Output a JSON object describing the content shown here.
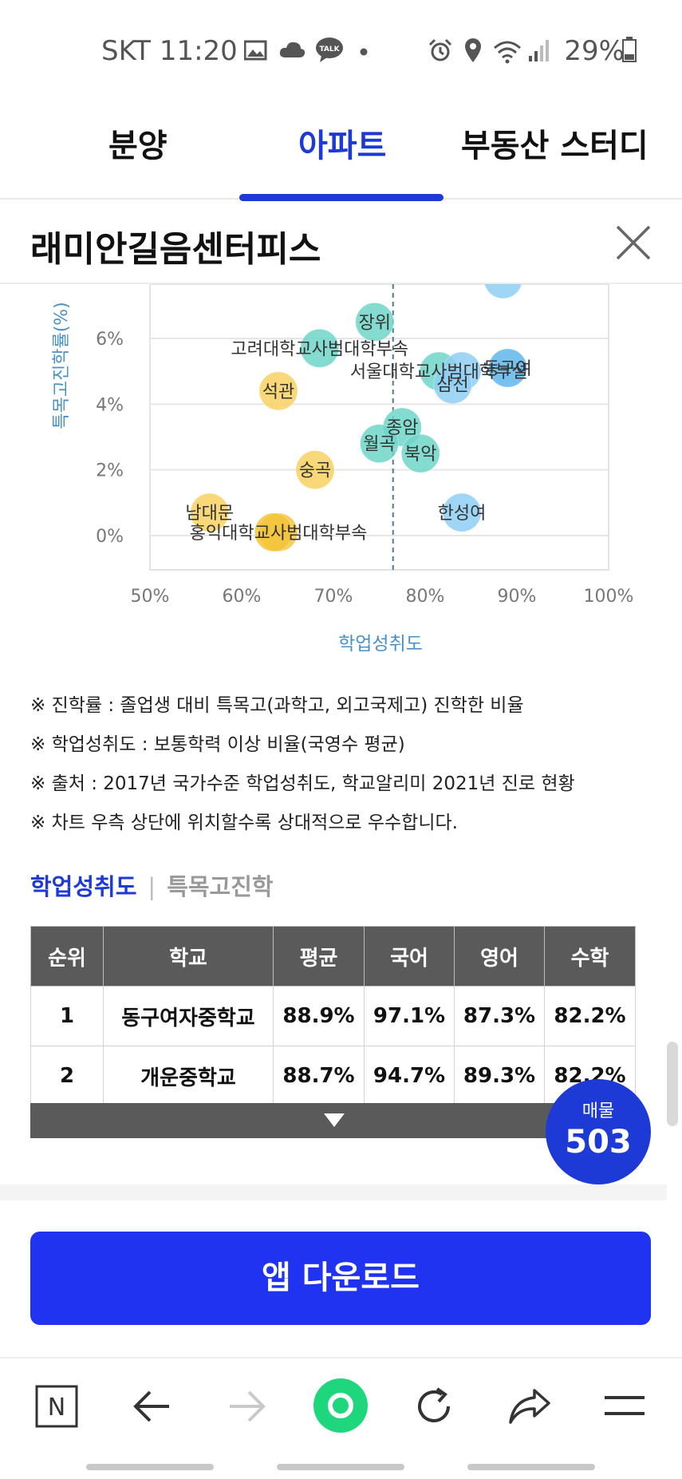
{
  "status_bar": {
    "carrier_time": "SKT 11:20",
    "battery": "29%",
    "icons": [
      "image-icon",
      "cloud-icon",
      "talk-icon",
      "dot-icon",
      "alarm-icon",
      "location-icon",
      "wifi-icon",
      "signal-icon",
      "battery-icon"
    ],
    "talk_label": "TALK"
  },
  "tabs": [
    {
      "label": "분양"
    },
    {
      "label": "아파트"
    },
    {
      "label": "부동산 스터디"
    }
  ],
  "page": {
    "title": "래미안길음센터피스"
  },
  "chart_data": {
    "type": "scatter",
    "xlabel": "학업성취도",
    "ylabel": "특목고진학률(%)",
    "x_ticks": [
      "50%",
      "60%",
      "70%",
      "80%",
      "90%",
      "100%"
    ],
    "y_ticks": [
      "0%",
      "2%",
      "4%",
      "6%"
    ],
    "xlim": [
      50,
      100
    ],
    "ylim": [
      -1,
      7.5
    ],
    "reference_x": 76.5,
    "points": [
      {
        "label": "장위",
        "x": 74.5,
        "y": 6.5,
        "color": "#6fd6c9"
      },
      {
        "label": "고려대학교사범대학부속",
        "x": 68.5,
        "y": 5.7,
        "color": "#6fd6c9"
      },
      {
        "label": "서울대학교사범대학부설",
        "x": 81.5,
        "y": 5.0,
        "color": "#6fd6c9"
      },
      {
        "label": "",
        "x": 84,
        "y": 5.0,
        "color": "#8fcff3"
      },
      {
        "label": "삼선",
        "x": 83,
        "y": 4.6,
        "color": "#8fcff3"
      },
      {
        "label": "동구여",
        "x": 89,
        "y": 5.1,
        "color": "#5fb6ec"
      },
      {
        "label": "",
        "x": 88.5,
        "y": 7.8,
        "color": "#8fcff3"
      },
      {
        "label": "석관",
        "x": 64,
        "y": 4.4,
        "color": "#f7d162"
      },
      {
        "label": "종암",
        "x": 77.5,
        "y": 3.3,
        "color": "#6fd6c9"
      },
      {
        "label": "월곡",
        "x": 75,
        "y": 2.8,
        "color": "#6fd6c9"
      },
      {
        "label": "북악",
        "x": 79.5,
        "y": 2.5,
        "color": "#6fd6c9"
      },
      {
        "label": "숭곡",
        "x": 68,
        "y": 2.0,
        "color": "#f7d162"
      },
      {
        "label": "한성여",
        "x": 84,
        "y": 0.7,
        "color": "#8fcff3"
      },
      {
        "label": "남대문",
        "x": 56.5,
        "y": 0.7,
        "color": "#f7d162"
      },
      {
        "label": "홍익대학교사범대학부속",
        "x": 64,
        "y": 0.1,
        "color": "#f3c43c"
      },
      {
        "label": "",
        "x": 63.5,
        "y": 0.1,
        "color": "#f3c43c"
      }
    ]
  },
  "notes": [
    "※ 진학률 : 졸업생 대비 특목고(과학고, 외고국제고) 진학한 비율",
    "※ 학업성취도 : 보통학력 이상 비율(국영수 평균)",
    "※ 출처 : 2017년 국가수준 학업성취도, 학교알리미 2021년 진로 현황",
    "※ 차트 우측 상단에 위치할수록 상대적으로 우수합니다."
  ],
  "sort_tabs": {
    "active": "학업성취도",
    "separator": "|",
    "inactive": "특목고진학"
  },
  "table": {
    "headers": [
      "순위",
      "학교",
      "평균",
      "국어",
      "영어",
      "수학"
    ],
    "rows": [
      [
        "1",
        "동구여자중학교",
        "88.9%",
        "97.1%",
        "87.3%",
        "82.2%"
      ],
      [
        "2",
        "개운중학교",
        "88.7%",
        "94.7%",
        "89.3%",
        "82.2%"
      ]
    ]
  },
  "listing_badge": {
    "label": "매물",
    "count": "503"
  },
  "download_button": {
    "label": "앱 다운로드"
  },
  "bottom_nav": {
    "icons": [
      "naver-n-icon",
      "back-arrow-icon",
      "forward-arrow-icon",
      "green-dot-icon",
      "refresh-icon",
      "share-icon",
      "menu-icon"
    ],
    "n_label": "N"
  }
}
